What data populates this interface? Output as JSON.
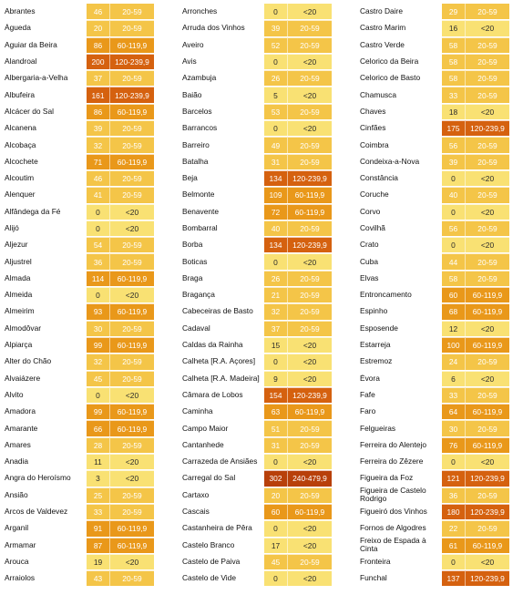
{
  "colors": {
    "tier_lt20": "#f9e173",
    "tier_20_59": "#f4c548",
    "tier_60_119": "#e9981a",
    "tier_120_239": "#d5610f",
    "tier_240_479": "#b8400a"
  },
  "columns": [
    [
      [
        "Abrantes",
        "46",
        "20-59"
      ],
      [
        "Águeda",
        "20",
        "20-59"
      ],
      [
        "Aguiar da Beira",
        "86",
        "60-119,9"
      ],
      [
        "Alandroal",
        "200",
        "120-239,9"
      ],
      [
        "Albergaria-a-Velha",
        "37",
        "20-59"
      ],
      [
        "Albufeira",
        "161",
        "120-239,9"
      ],
      [
        "Alcácer do Sal",
        "86",
        "60-119,9"
      ],
      [
        "Alcanena",
        "39",
        "20-59"
      ],
      [
        "Alcobaça",
        "32",
        "20-59"
      ],
      [
        "Alcochete",
        "71",
        "60-119,9"
      ],
      [
        "Alcoutim",
        "46",
        "20-59"
      ],
      [
        "Alenquer",
        "41",
        "20-59"
      ],
      [
        "Alfândega da Fé",
        "0",
        "<20"
      ],
      [
        "Alijó",
        "0",
        "<20"
      ],
      [
        "Aljezur",
        "54",
        "20-59"
      ],
      [
        "Aljustrel",
        "36",
        "20-59"
      ],
      [
        "Almada",
        "114",
        "60-119,9"
      ],
      [
        "Almeida",
        "0",
        "<20"
      ],
      [
        "Almeirim",
        "93",
        "60-119,9"
      ],
      [
        "Almodôvar",
        "30",
        "20-59"
      ],
      [
        "Alpiarça",
        "99",
        "60-119,9"
      ],
      [
        "Alter do Chão",
        "32",
        "20-59"
      ],
      [
        "Alvaiázere",
        "45",
        "20-59"
      ],
      [
        "Alvito",
        "0",
        "<20"
      ],
      [
        "Amadora",
        "99",
        "60-119,9"
      ],
      [
        "Amarante",
        "66",
        "60-119,9"
      ],
      [
        "Amares",
        "28",
        "20-59"
      ],
      [
        "Anadia",
        "11",
        "<20"
      ],
      [
        "Angra do Heroísmo",
        "3",
        "<20"
      ],
      [
        "Ansião",
        "25",
        "20-59"
      ],
      [
        "Arcos de Valdevez",
        "33",
        "20-59"
      ],
      [
        "Arganil",
        "91",
        "60-119,9"
      ],
      [
        "Armamar",
        "87",
        "60-119,9"
      ],
      [
        "Arouca",
        "19",
        "<20"
      ],
      [
        "Arraiolos",
        "43",
        "20-59"
      ]
    ],
    [
      [
        "Arronches",
        "0",
        "<20"
      ],
      [
        "Arruda dos Vinhos",
        "39",
        "20-59"
      ],
      [
        "Aveiro",
        "52",
        "20-59"
      ],
      [
        "Avis",
        "0",
        "<20"
      ],
      [
        "Azambuja",
        "26",
        "20-59"
      ],
      [
        "Baião",
        "5",
        "<20"
      ],
      [
        "Barcelos",
        "53",
        "20-59"
      ],
      [
        "Barrancos",
        "0",
        "<20"
      ],
      [
        "Barreiro",
        "49",
        "20-59"
      ],
      [
        "Batalha",
        "31",
        "20-59"
      ],
      [
        "Beja",
        "134",
        "120-239,9"
      ],
      [
        "Belmonte",
        "109",
        "60-119,9"
      ],
      [
        "Benavente",
        "72",
        "60-119,9"
      ],
      [
        "Bombarral",
        "40",
        "20-59"
      ],
      [
        "Borba",
        "134",
        "120-239,9"
      ],
      [
        "Boticas",
        "0",
        "<20"
      ],
      [
        "Braga",
        "26",
        "20-59"
      ],
      [
        "Bragança",
        "21",
        "20-59"
      ],
      [
        "Cabeceiras de Basto",
        "32",
        "20-59"
      ],
      [
        "Cadaval",
        "37",
        "20-59"
      ],
      [
        "Caldas da Rainha",
        "15",
        "<20"
      ],
      [
        "Calheta [R.A. Açores]",
        "0",
        "<20"
      ],
      [
        "Calheta [R.A. Madeira]",
        "9",
        "<20"
      ],
      [
        "Câmara de Lobos",
        "154",
        "120-239,9"
      ],
      [
        "Caminha",
        "63",
        "60-119,9"
      ],
      [
        "Campo Maior",
        "51",
        "20-59"
      ],
      [
        "Cantanhede",
        "31",
        "20-59"
      ],
      [
        "Carrazeda de Ansiães",
        "0",
        "<20"
      ],
      [
        "Carregal do Sal",
        "302",
        "240-479,9"
      ],
      [
        "Cartaxo",
        "20",
        "20-59"
      ],
      [
        "Cascais",
        "60",
        "60-119,9"
      ],
      [
        "Castanheira de Pêra",
        "0",
        "<20"
      ],
      [
        "Castelo Branco",
        "17",
        "<20"
      ],
      [
        "Castelo de Paiva",
        "45",
        "20-59"
      ],
      [
        "Castelo de Vide",
        "0",
        "<20"
      ]
    ],
    [
      [
        "Castro Daire",
        "29",
        "20-59"
      ],
      [
        "Castro Marim",
        "16",
        "<20"
      ],
      [
        "Castro Verde",
        "58",
        "20-59"
      ],
      [
        "Celorico da Beira",
        "58",
        "20-59"
      ],
      [
        "Celorico de Basto",
        "58",
        "20-59"
      ],
      [
        "Chamusca",
        "33",
        "20-59"
      ],
      [
        "Chaves",
        "18",
        "<20"
      ],
      [
        "Cinfães",
        "175",
        "120-239,9"
      ],
      [
        "Coimbra",
        "56",
        "20-59"
      ],
      [
        "Condeixa-a-Nova",
        "39",
        "20-59"
      ],
      [
        "Constância",
        "0",
        "<20"
      ],
      [
        "Coruche",
        "40",
        "20-59"
      ],
      [
        "Corvo",
        "0",
        "<20"
      ],
      [
        "Covilhã",
        "56",
        "20-59"
      ],
      [
        "Crato",
        "0",
        "<20"
      ],
      [
        "Cuba",
        "44",
        "20-59"
      ],
      [
        "Elvas",
        "58",
        "20-59"
      ],
      [
        "Entroncamento",
        "60",
        "60-119,9"
      ],
      [
        "Espinho",
        "68",
        "60-119,9"
      ],
      [
        "Esposende",
        "12",
        "<20"
      ],
      [
        "Estarreja",
        "100",
        "60-119,9"
      ],
      [
        "Estremoz",
        "24",
        "20-59"
      ],
      [
        "Évora",
        "6",
        "<20"
      ],
      [
        "Fafe",
        "33",
        "20-59"
      ],
      [
        "Faro",
        "64",
        "60-119,9"
      ],
      [
        "Felgueiras",
        "30",
        "20-59"
      ],
      [
        "Ferreira do Alentejo",
        "76",
        "60-119,9"
      ],
      [
        "Ferreira do Zêzere",
        "0",
        "<20"
      ],
      [
        "Figueira da Foz",
        "121",
        "120-239,9"
      ],
      [
        "Figueira de Castelo Rodrigo",
        "36",
        "20-59"
      ],
      [
        "Figueiró dos Vinhos",
        "180",
        "120-239,9"
      ],
      [
        "Fornos de Algodres",
        "22",
        "20-59"
      ],
      [
        "Freixo de Espada à Cinta",
        "61",
        "60-119,9"
      ],
      [
        "Fronteira",
        "0",
        "<20"
      ],
      [
        "Funchal",
        "137",
        "120-239,9"
      ]
    ]
  ]
}
